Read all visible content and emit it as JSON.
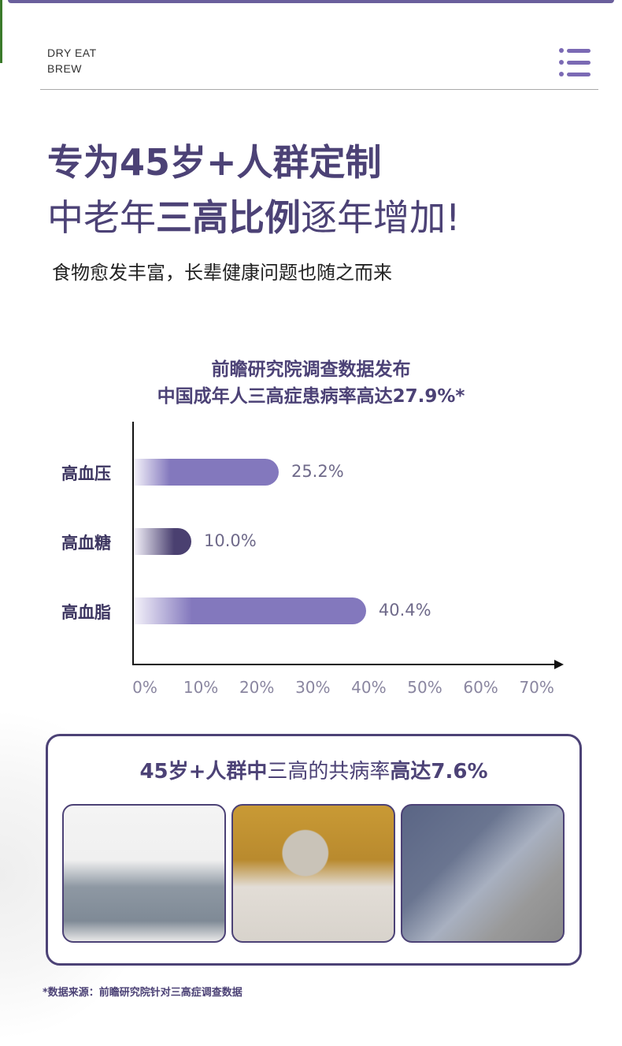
{
  "header": {
    "brand_line1": "DRY EAT",
    "brand_line2": "BREW",
    "menu_icon": "list-menu-icon"
  },
  "headline": {
    "line1": "专为45岁+人群定制",
    "line2_a": "中老年",
    "line2_b": "三高比例",
    "line2_c": "逐年增加!"
  },
  "subtitle": "食物愈发丰富，长辈健康问题也随之而来",
  "colors": {
    "accent": "#4c4276",
    "bar": "#8378bd",
    "bar_dark": "#4a4070"
  },
  "chart_data": {
    "type": "bar",
    "orientation": "horizontal",
    "title_line1": "前瞻研究院调查数据发布",
    "title_line2": "中国成年人三高症患病率高达27.9%*",
    "categories": [
      "高血压",
      "高血糖",
      "高血脂"
    ],
    "values": [
      25.2,
      10.0,
      40.4
    ],
    "value_labels": [
      "25.2%",
      "10.0%",
      "40.4%"
    ],
    "xlim": [
      0,
      70
    ],
    "xticks": [
      "0%",
      "10%",
      "20%",
      "30%",
      "40%",
      "50%",
      "60%",
      "70%"
    ],
    "grid": false
  },
  "card": {
    "title_a": "45岁+人群中",
    "title_b": "三高的共病率",
    "title_c": "高达7.6%"
  },
  "footnote": "*数据来源：前瞻研究院针对三高症调查数据"
}
